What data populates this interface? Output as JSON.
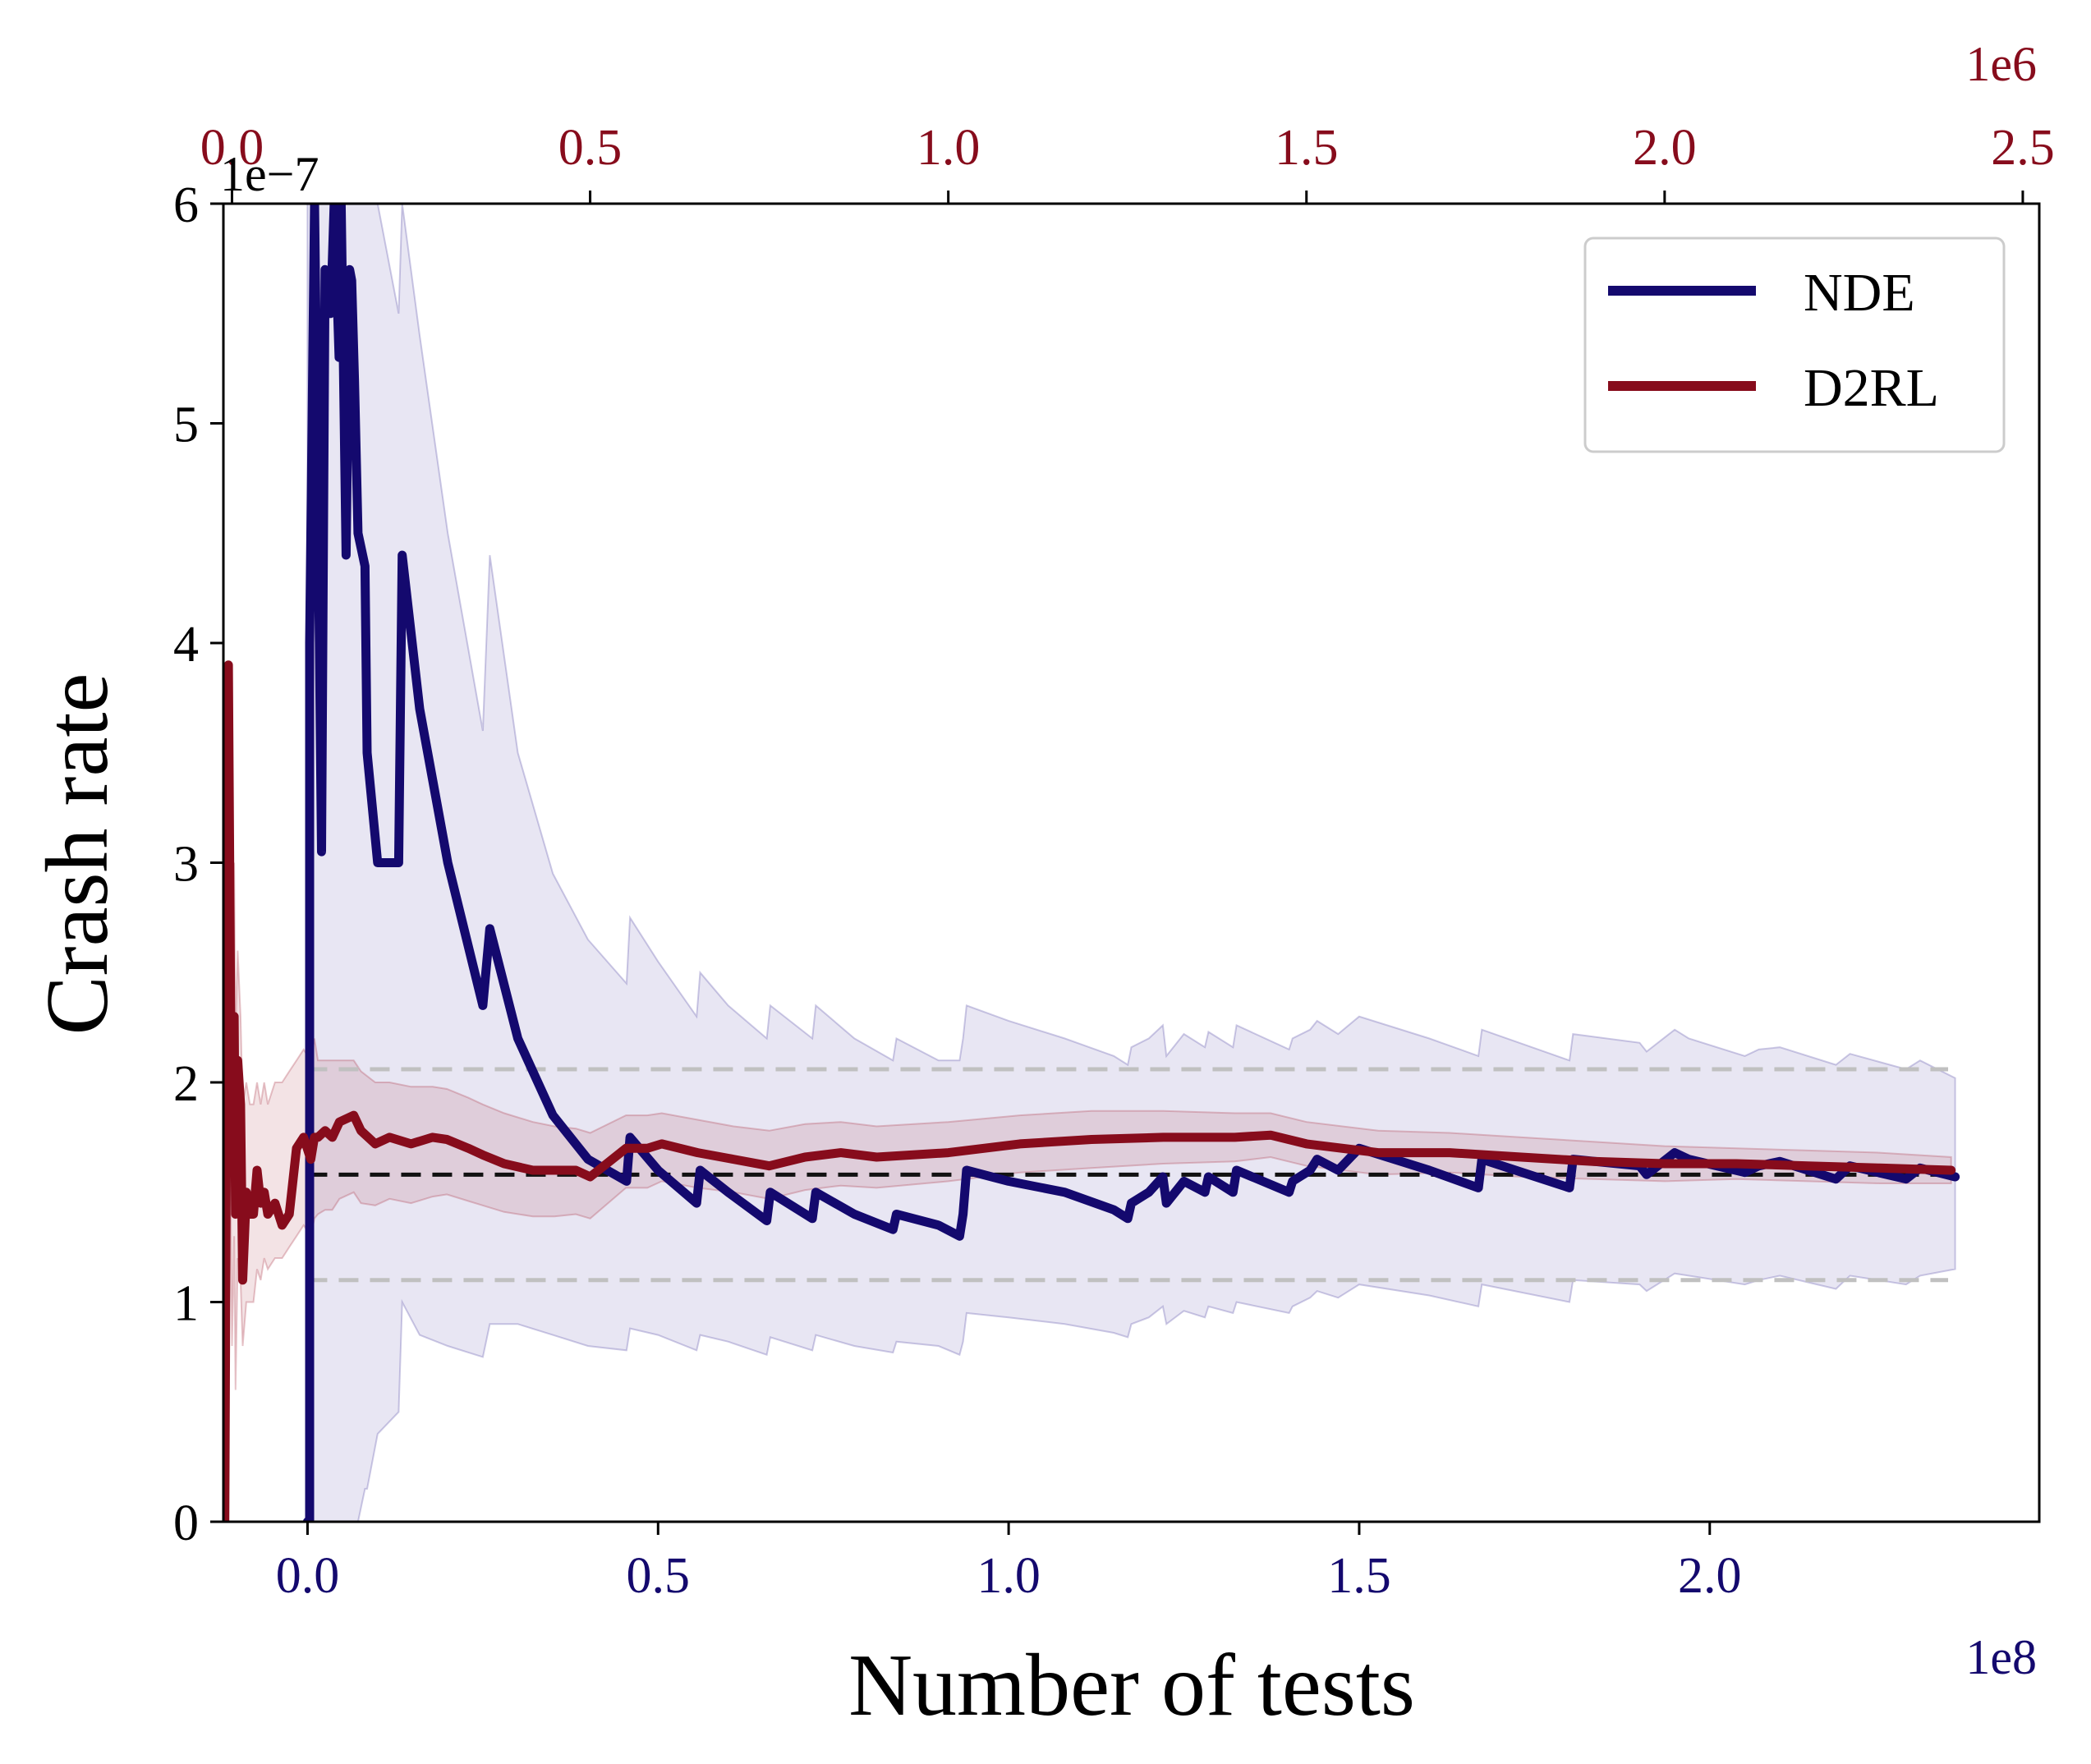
{
  "chart_data": {
    "type": "line",
    "xlabel": "Number of tests",
    "ylabel": "Crash rate",
    "x_multiplier_label": "1e8",
    "y_multiplier_label": "1e−7",
    "top_x_multiplier_label": "1e6",
    "xlim": [
      -0.12,
      2.47
    ],
    "ylim": [
      0,
      6
    ],
    "top_xlim": [
      -0.012,
      2.523
    ],
    "x_ticks": [
      0.0,
      0.5,
      1.0,
      1.5,
      2.0
    ],
    "x_tick_labels": [
      "0.0",
      "0.5",
      "1.0",
      "1.5",
      "2.0"
    ],
    "y_ticks": [
      0,
      1,
      2,
      3,
      4,
      5,
      6
    ],
    "y_tick_labels": [
      "0",
      "1",
      "2",
      "3",
      "4",
      "5",
      "6"
    ],
    "top_x_ticks": [
      0.0,
      0.5,
      1.0,
      1.5,
      2.0,
      2.5
    ],
    "top_x_tick_labels": [
      "0.0",
      "0.5",
      "1.0",
      "1.5",
      "2.0",
      "2.5"
    ],
    "colors": {
      "nde": "#14096e",
      "d2rl": "#870c1c",
      "reference": "#111111",
      "bounds": "#c0c0c0"
    },
    "reference_lines": [
      {
        "y": 1.58,
        "style": "dashed",
        "color": "#111111"
      },
      {
        "y": 2.06,
        "style": "dashed",
        "color": "#c0c0c0"
      },
      {
        "y": 1.1,
        "style": "dashed",
        "color": "#c0c0c0"
      }
    ],
    "reference_x_range": [
      0.0,
      2.34
    ],
    "legend": {
      "placement": "top-right",
      "entries": [
        "NDE",
        "D2RL"
      ]
    },
    "grid": false,
    "series": [
      {
        "name": "NDE",
        "axis": "bottom",
        "color": "#14096e",
        "x": [
          0.0,
          0.003,
          0.003,
          0.01,
          0.013,
          0.02,
          0.025,
          0.033,
          0.038,
          0.045,
          0.048,
          0.055,
          0.06,
          0.063,
          0.067,
          0.072,
          0.082,
          0.085,
          0.1,
          0.13,
          0.135,
          0.16,
          0.2,
          0.25,
          0.26,
          0.3,
          0.35,
          0.4,
          0.455,
          0.46,
          0.5,
          0.555,
          0.56,
          0.6,
          0.655,
          0.66,
          0.72,
          0.725,
          0.78,
          0.835,
          0.84,
          0.9,
          0.93,
          0.935,
          0.94,
          1.0,
          1.08,
          1.15,
          1.17,
          1.175,
          1.2,
          1.22,
          1.225,
          1.25,
          1.28,
          1.285,
          1.32,
          1.325,
          1.4,
          1.405,
          1.43,
          1.44,
          1.47,
          1.5,
          1.6,
          1.67,
          1.675,
          1.8,
          1.805,
          1.9,
          1.91,
          1.95,
          1.97,
          2.05,
          2.07,
          2.1,
          2.18,
          2.2,
          2.28,
          2.3,
          2.35
        ],
        "y": [
          0.0,
          0.0,
          4.0,
          6.0,
          5.2,
          3.05,
          5.7,
          5.5,
          6.0,
          5.3,
          6.0,
          4.4,
          5.7,
          5.65,
          5.2,
          4.5,
          4.35,
          3.5,
          3.0,
          3.0,
          4.4,
          3.7,
          3.0,
          2.35,
          2.7,
          2.2,
          1.85,
          1.65,
          1.55,
          1.75,
          1.6,
          1.45,
          1.6,
          1.5,
          1.37,
          1.5,
          1.38,
          1.5,
          1.4,
          1.33,
          1.4,
          1.35,
          1.3,
          1.4,
          1.6,
          1.55,
          1.5,
          1.42,
          1.38,
          1.45,
          1.5,
          1.57,
          1.45,
          1.55,
          1.5,
          1.57,
          1.5,
          1.6,
          1.5,
          1.55,
          1.6,
          1.65,
          1.6,
          1.7,
          1.6,
          1.52,
          1.65,
          1.52,
          1.65,
          1.62,
          1.58,
          1.68,
          1.65,
          1.59,
          1.62,
          1.64,
          1.56,
          1.62,
          1.56,
          1.61,
          1.57
        ],
        "band_upper": [
          6.0,
          6.0,
          6.0,
          6.0,
          6.0,
          6.0,
          6.0,
          6.0,
          6.0,
          6.0,
          6.0,
          6.0,
          6.0,
          6.0,
          6.0,
          6.0,
          6.0,
          6.0,
          6.0,
          5.5,
          6.0,
          5.4,
          4.5,
          3.6,
          4.4,
          3.5,
          2.95,
          2.65,
          2.45,
          2.75,
          2.55,
          2.3,
          2.5,
          2.35,
          2.2,
          2.35,
          2.2,
          2.35,
          2.2,
          2.1,
          2.2,
          2.1,
          2.1,
          2.2,
          2.35,
          2.28,
          2.2,
          2.12,
          2.08,
          2.16,
          2.2,
          2.26,
          2.12,
          2.22,
          2.16,
          2.23,
          2.16,
          2.26,
          2.15,
          2.2,
          2.24,
          2.28,
          2.22,
          2.3,
          2.2,
          2.12,
          2.24,
          2.1,
          2.22,
          2.18,
          2.14,
          2.24,
          2.2,
          2.12,
          2.15,
          2.16,
          2.08,
          2.13,
          2.06,
          2.1,
          2.02
        ],
        "band_lower": [
          0.0,
          0.0,
          0.0,
          0.0,
          0.0,
          0.0,
          0.0,
          0.0,
          0.0,
          0.0,
          0.0,
          0.0,
          0.0,
          0.0,
          0.0,
          0.0,
          0.15,
          0.15,
          0.4,
          0.5,
          1.0,
          0.85,
          0.8,
          0.75,
          0.9,
          0.9,
          0.85,
          0.8,
          0.78,
          0.88,
          0.85,
          0.78,
          0.85,
          0.82,
          0.76,
          0.84,
          0.78,
          0.85,
          0.8,
          0.77,
          0.82,
          0.8,
          0.76,
          0.82,
          0.95,
          0.93,
          0.9,
          0.86,
          0.84,
          0.9,
          0.93,
          0.98,
          0.9,
          0.96,
          0.93,
          0.98,
          0.95,
          1.0,
          0.95,
          0.98,
          1.02,
          1.05,
          1.02,
          1.08,
          1.03,
          0.98,
          1.08,
          1.0,
          1.1,
          1.08,
          1.05,
          1.13,
          1.12,
          1.08,
          1.1,
          1.12,
          1.06,
          1.12,
          1.08,
          1.12,
          1.15
        ]
      },
      {
        "name": "D2RL",
        "axis": "top",
        "color": "#870c1c",
        "x": [
          -0.01,
          -0.005,
          -0.002,
          0.0,
          0.003,
          0.005,
          0.008,
          0.012,
          0.015,
          0.02,
          0.025,
          0.03,
          0.035,
          0.04,
          0.045,
          0.05,
          0.06,
          0.07,
          0.08,
          0.09,
          0.1,
          0.11,
          0.115,
          0.12,
          0.13,
          0.14,
          0.15,
          0.17,
          0.18,
          0.2,
          0.22,
          0.25,
          0.28,
          0.3,
          0.33,
          0.35,
          0.38,
          0.42,
          0.45,
          0.48,
          0.5,
          0.55,
          0.58,
          0.6,
          0.65,
          0.7,
          0.75,
          0.8,
          0.85,
          0.9,
          1.0,
          1.1,
          1.2,
          1.3,
          1.4,
          1.45,
          1.5,
          1.6,
          1.7,
          1.8,
          1.9,
          2.0,
          2.1,
          2.2,
          2.3,
          2.4
        ],
        "y": [
          0.0,
          3.9,
          2.4,
          1.7,
          2.3,
          1.4,
          2.1,
          1.9,
          1.1,
          1.5,
          1.4,
          1.4,
          1.6,
          1.45,
          1.5,
          1.4,
          1.45,
          1.35,
          1.4,
          1.7,
          1.75,
          1.65,
          1.75,
          1.75,
          1.78,
          1.75,
          1.82,
          1.85,
          1.78,
          1.72,
          1.75,
          1.72,
          1.75,
          1.74,
          1.7,
          1.67,
          1.63,
          1.6,
          1.6,
          1.6,
          1.57,
          1.7,
          1.7,
          1.72,
          1.68,
          1.65,
          1.62,
          1.66,
          1.68,
          1.66,
          1.68,
          1.72,
          1.74,
          1.75,
          1.75,
          1.76,
          1.72,
          1.68,
          1.68,
          1.66,
          1.64,
          1.63,
          1.63,
          1.62,
          1.61,
          1.6
        ],
        "band_upper": [
          0.6,
          3.9,
          3.4,
          2.8,
          3.0,
          2.2,
          2.6,
          2.3,
          1.9,
          2.0,
          1.9,
          1.9,
          2.0,
          1.9,
          2.0,
          1.9,
          2.0,
          2.0,
          2.05,
          2.1,
          2.15,
          2.1,
          2.2,
          2.1,
          2.1,
          2.1,
          2.1,
          2.1,
          2.05,
          2.0,
          2.0,
          1.98,
          1.98,
          1.97,
          1.93,
          1.9,
          1.86,
          1.82,
          1.8,
          1.79,
          1.77,
          1.85,
          1.85,
          1.86,
          1.83,
          1.8,
          1.78,
          1.81,
          1.82,
          1.8,
          1.82,
          1.85,
          1.87,
          1.87,
          1.86,
          1.86,
          1.82,
          1.78,
          1.77,
          1.75,
          1.73,
          1.71,
          1.7,
          1.69,
          1.68,
          1.66
        ],
        "band_lower": [
          0.0,
          2.4,
          1.5,
          0.8,
          1.3,
          0.6,
          1.2,
          1.1,
          0.8,
          1.0,
          1.0,
          1.0,
          1.15,
          1.1,
          1.2,
          1.15,
          1.2,
          1.2,
          1.25,
          1.3,
          1.35,
          1.3,
          1.38,
          1.4,
          1.42,
          1.42,
          1.47,
          1.5,
          1.45,
          1.44,
          1.47,
          1.45,
          1.48,
          1.49,
          1.46,
          1.44,
          1.41,
          1.39,
          1.39,
          1.4,
          1.38,
          1.52,
          1.52,
          1.55,
          1.52,
          1.5,
          1.47,
          1.51,
          1.53,
          1.52,
          1.55,
          1.59,
          1.61,
          1.63,
          1.64,
          1.66,
          1.62,
          1.58,
          1.59,
          1.57,
          1.56,
          1.55,
          1.56,
          1.55,
          1.54,
          1.54
        ]
      }
    ]
  }
}
